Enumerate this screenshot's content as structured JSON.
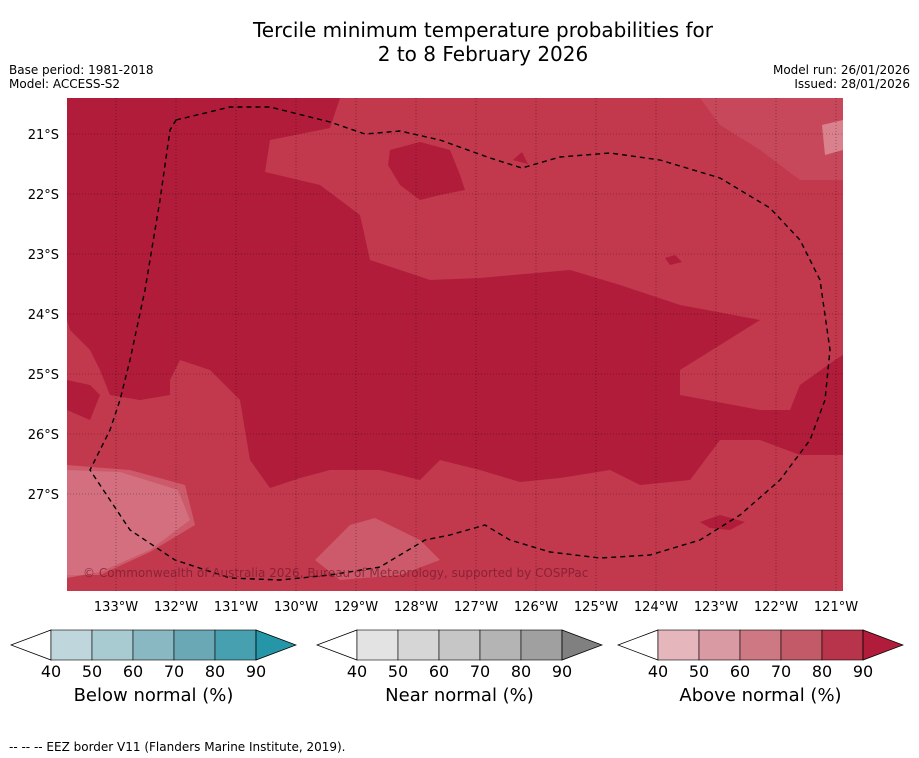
{
  "title_line1": "Tercile minimum temperature probabilities for",
  "title_line2": "2 to 8 February 2026",
  "base_period": "Base period: 1981-2018",
  "model": "Model: ACCESS-S2",
  "model_run": "Model run: 26/01/2026",
  "issued": "Issued: 28/01/2026",
  "copyright": "© Commonwealth of Australia 2026, Bureau of Meteorology, supported by COSPPac",
  "lat_labels": [
    "21°S",
    "22°S",
    "23°S",
    "24°S",
    "25°S",
    "26°S",
    "27°S"
  ],
  "lon_labels": [
    "133°W",
    "132°W",
    "131°W",
    "130°W",
    "129°W",
    "128°W",
    "127°W",
    "126°W",
    "125°W",
    "124°W",
    "123°W",
    "122°W",
    "121°W"
  ],
  "colors": {
    "above_80_90": "#b01c3a",
    "above_70_80": "#c2384c",
    "above_60_70": "#cc5a6a",
    "above_50_60": "#d9828e",
    "above_40_50": "#e6b6bd"
  },
  "colorbars": [
    {
      "title": "Below normal (%)",
      "ticks": [
        "40",
        "50",
        "60",
        "70",
        "80",
        "90"
      ],
      "colors": [
        "#c0d6dd",
        "#a8cbd2",
        "#8ab8c2",
        "#6aa8b5",
        "#47a0b0"
      ],
      "extend_color": "#2596a8"
    },
    {
      "title": "Near normal (%)",
      "ticks": [
        "40",
        "50",
        "60",
        "70",
        "80",
        "90"
      ],
      "colors": [
        "#e3e3e3",
        "#d6d6d6",
        "#c6c6c6",
        "#b4b4b4",
        "#a0a0a0"
      ],
      "extend_color": "#808080"
    },
    {
      "title": "Above normal (%)",
      "ticks": [
        "40",
        "50",
        "60",
        "70",
        "80",
        "90"
      ],
      "colors": [
        "#e6b6bd",
        "#d99aa3",
        "#cd7882",
        "#c25a68",
        "#b8344b"
      ],
      "extend_color": "#b01c3a"
    }
  ],
  "footer": "--  --  -- EEZ border V11 (Flanders Marine Institute, 2019)."
}
